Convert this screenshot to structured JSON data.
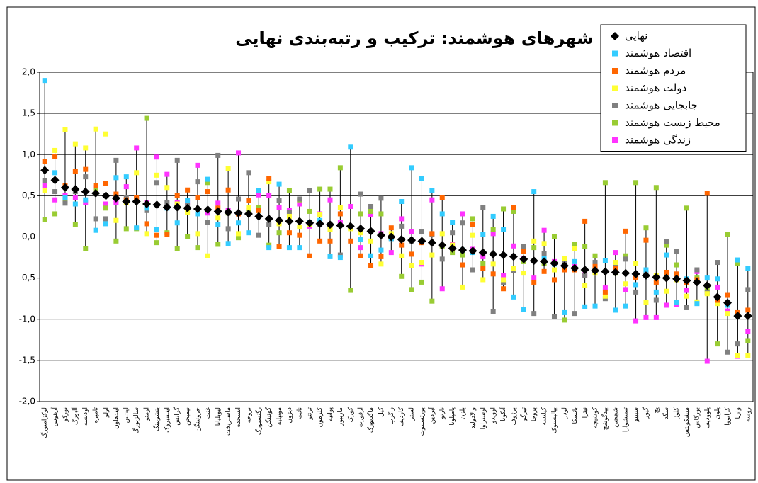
{
  "chart_data": {
    "type": "dot-range",
    "title": "شهرهای هوشمند: ترکیب و رتبه‌بندی نهایی",
    "categories": [
      "لوکزامبورگ",
      "آرهوس",
      "تورکو",
      "آلبورگ",
      "اودنسه",
      "تامپره",
      "اولو",
      "ایندهاون",
      "لینتس",
      "سالزبورگ",
      "اومئو",
      "ینشوپینگ",
      "اینسبروک",
      "گراتس",
      "نیمیخن",
      "خرونینگن",
      "غنت",
      "لیوبلیانا",
      "ماستریخت",
      "انسخده",
      "بروخه",
      "رگنسبورگ",
      "گوتینگن",
      "مونپلیه",
      "دیژون",
      "نانت",
      "ترنتو",
      "کلرمون",
      "پواتیه",
      "ماریبور",
      "کورک",
      "ارفورت",
      "ماگدبورگ",
      "کیل",
      "زاگرب",
      "کاردیف",
      "لستر",
      "پورتسموث",
      "آبردین",
      "تارتو",
      "پامپلونا",
      "پلزن",
      "والادولید",
      "اوستراوا",
      "اوویدو",
      "آنکونا",
      "پرژوف",
      "تیرگو",
      "پروجا",
      "کیلتسه",
      "بیالیستوک",
      "لودز",
      "بانسکا",
      "نیترا",
      "کوشیچه",
      "بیدگوشچ",
      "شچچین",
      "تیمیشوارا",
      "سیبیو",
      "گیور",
      "پچ",
      "سگد",
      "کلوژ",
      "میشکولتس",
      "بورگاس",
      "پلوودیف",
      "پلون",
      "کرایووا",
      "وارنا",
      "روسه"
    ],
    "series": [
      {
        "name": "نهایی",
        "color": "#000000",
        "marker": "diamond",
        "values": [
          0.81,
          0.69,
          0.6,
          0.58,
          0.55,
          0.53,
          0.5,
          0.47,
          0.43,
          0.43,
          0.4,
          0.39,
          0.36,
          0.36,
          0.35,
          0.34,
          0.33,
          0.31,
          0.3,
          0.29,
          0.28,
          0.25,
          0.22,
          0.2,
          0.19,
          0.19,
          0.17,
          0.16,
          0.15,
          0.14,
          0.13,
          0.1,
          0.07,
          0.02,
          0.0,
          -0.03,
          -0.04,
          -0.05,
          -0.07,
          -0.1,
          -0.14,
          -0.16,
          -0.17,
          -0.19,
          -0.21,
          -0.22,
          -0.24,
          -0.27,
          -0.29,
          -0.3,
          -0.32,
          -0.35,
          -0.38,
          -0.4,
          -0.41,
          -0.42,
          -0.43,
          -0.44,
          -0.45,
          -0.47,
          -0.49,
          -0.5,
          -0.51,
          -0.53,
          -0.55,
          -0.59,
          -0.73,
          -0.8,
          -0.96,
          -0.96
        ]
      },
      {
        "name": "اقتصاد هوشمند",
        "color": "#33ccff",
        "marker": "square",
        "values": [
          1.9,
          0.78,
          0.48,
          0.4,
          0.45,
          0.08,
          0.16,
          0.72,
          0.73,
          0.11,
          0.35,
          0.09,
          0.35,
          0.17,
          0.44,
          0.28,
          0.7,
          0.15,
          -0.08,
          0.17,
          0.05,
          0.56,
          -0.13,
          0.64,
          -0.13,
          -0.13,
          0.18,
          0.2,
          -0.24,
          -0.25,
          1.09,
          -0.03,
          -0.23,
          -0.16,
          -0.02,
          0.43,
          0.84,
          0.71,
          0.56,
          0.28,
          0.18,
          -0.16,
          -0.19,
          0.03,
          0.25,
          0.09,
          -0.73,
          -0.88,
          0.55,
          -0.26,
          -0.33,
          -0.92,
          -0.3,
          -0.85,
          -0.84,
          -0.29,
          -0.89,
          -0.84,
          -0.58,
          -0.4,
          -0.67,
          -0.22,
          -0.8,
          -0.51,
          -0.81,
          -0.5,
          -0.51,
          -0.83,
          -0.28,
          -0.38
        ]
      },
      {
        "name": "مردم هوشمند",
        "color": "#ff6600",
        "marker": "square",
        "values": [
          0.92,
          0.98,
          0.62,
          0.8,
          0.82,
          0.62,
          0.65,
          0.52,
          0.45,
          0.48,
          0.16,
          0.02,
          0.03,
          0.5,
          0.57,
          0.48,
          0.55,
          0.35,
          0.57,
          0.28,
          0.44,
          0.32,
          0.71,
          -0.12,
          0.05,
          0.02,
          -0.23,
          -0.05,
          -0.05,
          0.28,
          -0.05,
          -0.23,
          -0.35,
          -0.24,
          0.11,
          -0.1,
          -0.21,
          -0.07,
          0.04,
          0.48,
          -0.14,
          -0.34,
          0.15,
          -0.38,
          -0.45,
          -0.63,
          0.36,
          -0.18,
          -0.55,
          -0.42,
          -0.52,
          -0.4,
          -0.4,
          0.19,
          -0.36,
          -0.67,
          -0.38,
          0.07,
          -0.49,
          -0.04,
          -0.55,
          -0.43,
          -0.45,
          -0.55,
          -0.52,
          0.53,
          -0.77,
          -0.71,
          -0.92,
          -0.89
        ]
      },
      {
        "name": "دولت هوشمند",
        "color": "#ffff33",
        "marker": "square",
        "values": [
          0.56,
          1.05,
          1.3,
          1.13,
          1.08,
          1.31,
          1.25,
          0.2,
          0.42,
          0.78,
          0.04,
          0.75,
          0.6,
          0.4,
          0.3,
          0.04,
          -0.23,
          0.23,
          0.83,
          0.04,
          0.36,
          0.32,
          0.67,
          0.16,
          0.25,
          0.12,
          0.15,
          0.27,
          0.09,
          0.36,
          0.1,
          0.05,
          -0.05,
          -0.33,
          0.04,
          -0.23,
          -0.35,
          -0.31,
          -0.22,
          0.04,
          -0.1,
          -0.61,
          0.02,
          -0.52,
          -0.33,
          -0.52,
          -0.38,
          -0.44,
          -0.05,
          -0.08,
          -0.4,
          -0.26,
          -0.14,
          -0.59,
          -0.44,
          -0.72,
          -0.31,
          -0.57,
          -0.32,
          -0.8,
          -0.47,
          -0.66,
          -0.52,
          -0.72,
          -0.79,
          -0.69,
          -0.81,
          -0.93,
          -1.44,
          -1.44
        ]
      },
      {
        "name": "جابجایی هوشمند",
        "color": "#808080",
        "marker": "square",
        "values": [
          0.68,
          0.55,
          0.41,
          0.55,
          0.73,
          0.22,
          0.22,
          0.93,
          0.48,
          0.48,
          0.32,
          0.66,
          0.42,
          0.93,
          0.38,
          0.67,
          0.18,
          0.99,
          0.1,
          0.46,
          0.78,
          0.02,
          0.15,
          0.44,
          0.3,
          0.46,
          0.56,
          0.15,
          0.15,
          -0.22,
          0.12,
          0.52,
          0.37,
          0.47,
          -0.02,
          0.13,
          -0.05,
          0.06,
          0.03,
          -0.27,
          0.05,
          0.17,
          -0.4,
          0.36,
          -0.91,
          -0.56,
          -0.41,
          -0.12,
          -0.93,
          -0.2,
          -0.97,
          -0.3,
          -0.93,
          -0.47,
          -0.31,
          -0.75,
          -0.35,
          -0.27,
          -0.67,
          -0.45,
          -0.77,
          -0.06,
          -0.18,
          -0.86,
          -0.4,
          -0.68,
          -0.31,
          -1.4,
          -1.3,
          -0.64
        ]
      },
      {
        "name": "محیط زیست هوشمند",
        "color": "#99cc33",
        "marker": "square",
        "values": [
          0.21,
          0.28,
          0.45,
          0.15,
          -0.14,
          0.56,
          0.35,
          -0.05,
          0.1,
          0.1,
          1.44,
          -0.07,
          0.05,
          -0.14,
          0.0,
          -0.13,
          0.66,
          -0.09,
          0.29,
          -0.01,
          0.3,
          0.36,
          -0.1,
          0.05,
          0.56,
          0.45,
          0.31,
          0.58,
          0.58,
          0.84,
          -0.65,
          0.28,
          0.31,
          0.28,
          -0.01,
          -0.48,
          -0.64,
          -0.55,
          -0.78,
          -0.11,
          -0.19,
          -0.22,
          0.22,
          -0.32,
          0.09,
          0.34,
          0.31,
          -0.3,
          -0.13,
          -0.32,
          0.0,
          -1.01,
          -0.09,
          -0.12,
          -0.23,
          0.66,
          -0.44,
          -0.23,
          0.66,
          0.11,
          0.6,
          -0.1,
          -0.34,
          0.35,
          -0.5,
          -0.64,
          -1.3,
          0.03,
          -0.32,
          -1.26
        ]
      },
      {
        "name": "زندگی هوشمند",
        "color": "#ff33ff",
        "marker": "square",
        "values": [
          0.62,
          0.45,
          0.5,
          0.48,
          0.42,
          0.6,
          0.4,
          0.42,
          0.61,
          1.08,
          0.42,
          0.97,
          0.76,
          0.42,
          0.42,
          0.87,
          0.29,
          0.41,
          0.32,
          1.02,
          0.32,
          0.51,
          0.5,
          0.36,
          0.32,
          0.4,
          0.13,
          0.28,
          0.45,
          0.18,
          0.37,
          -0.13,
          0.27,
          0.04,
          -0.19,
          0.22,
          0.06,
          -0.33,
          0.45,
          -0.63,
          -0.09,
          0.28,
          -0.15,
          -0.24,
          0.04,
          -0.47,
          -0.11,
          -0.26,
          -0.5,
          0.08,
          -0.3,
          -0.28,
          -0.36,
          -0.46,
          -0.34,
          -0.62,
          -0.19,
          -0.64,
          -1.02,
          -0.98,
          -0.98,
          -0.83,
          -0.82,
          -0.65,
          -0.42,
          -1.51,
          -0.61,
          -0.9,
          -1.45,
          -1.15
        ]
      }
    ],
    "ylim": [
      -2,
      2
    ],
    "yticks": [
      {
        "value": -2,
        "label": "-2,0"
      },
      {
        "value": -1.5,
        "label": "-1,5"
      },
      {
        "value": -1,
        "label": "-1,0"
      },
      {
        "value": -0.5,
        "label": "-0,5"
      },
      {
        "value": 0,
        "label": "0,0"
      },
      {
        "value": 0.5,
        "label": "0,5"
      },
      {
        "value": 1,
        "label": "1,0"
      },
      {
        "value": 1.5,
        "label": "1,5"
      },
      {
        "value": 2,
        "label": "2,0"
      }
    ],
    "grid": true,
    "legend": "top-right"
  }
}
